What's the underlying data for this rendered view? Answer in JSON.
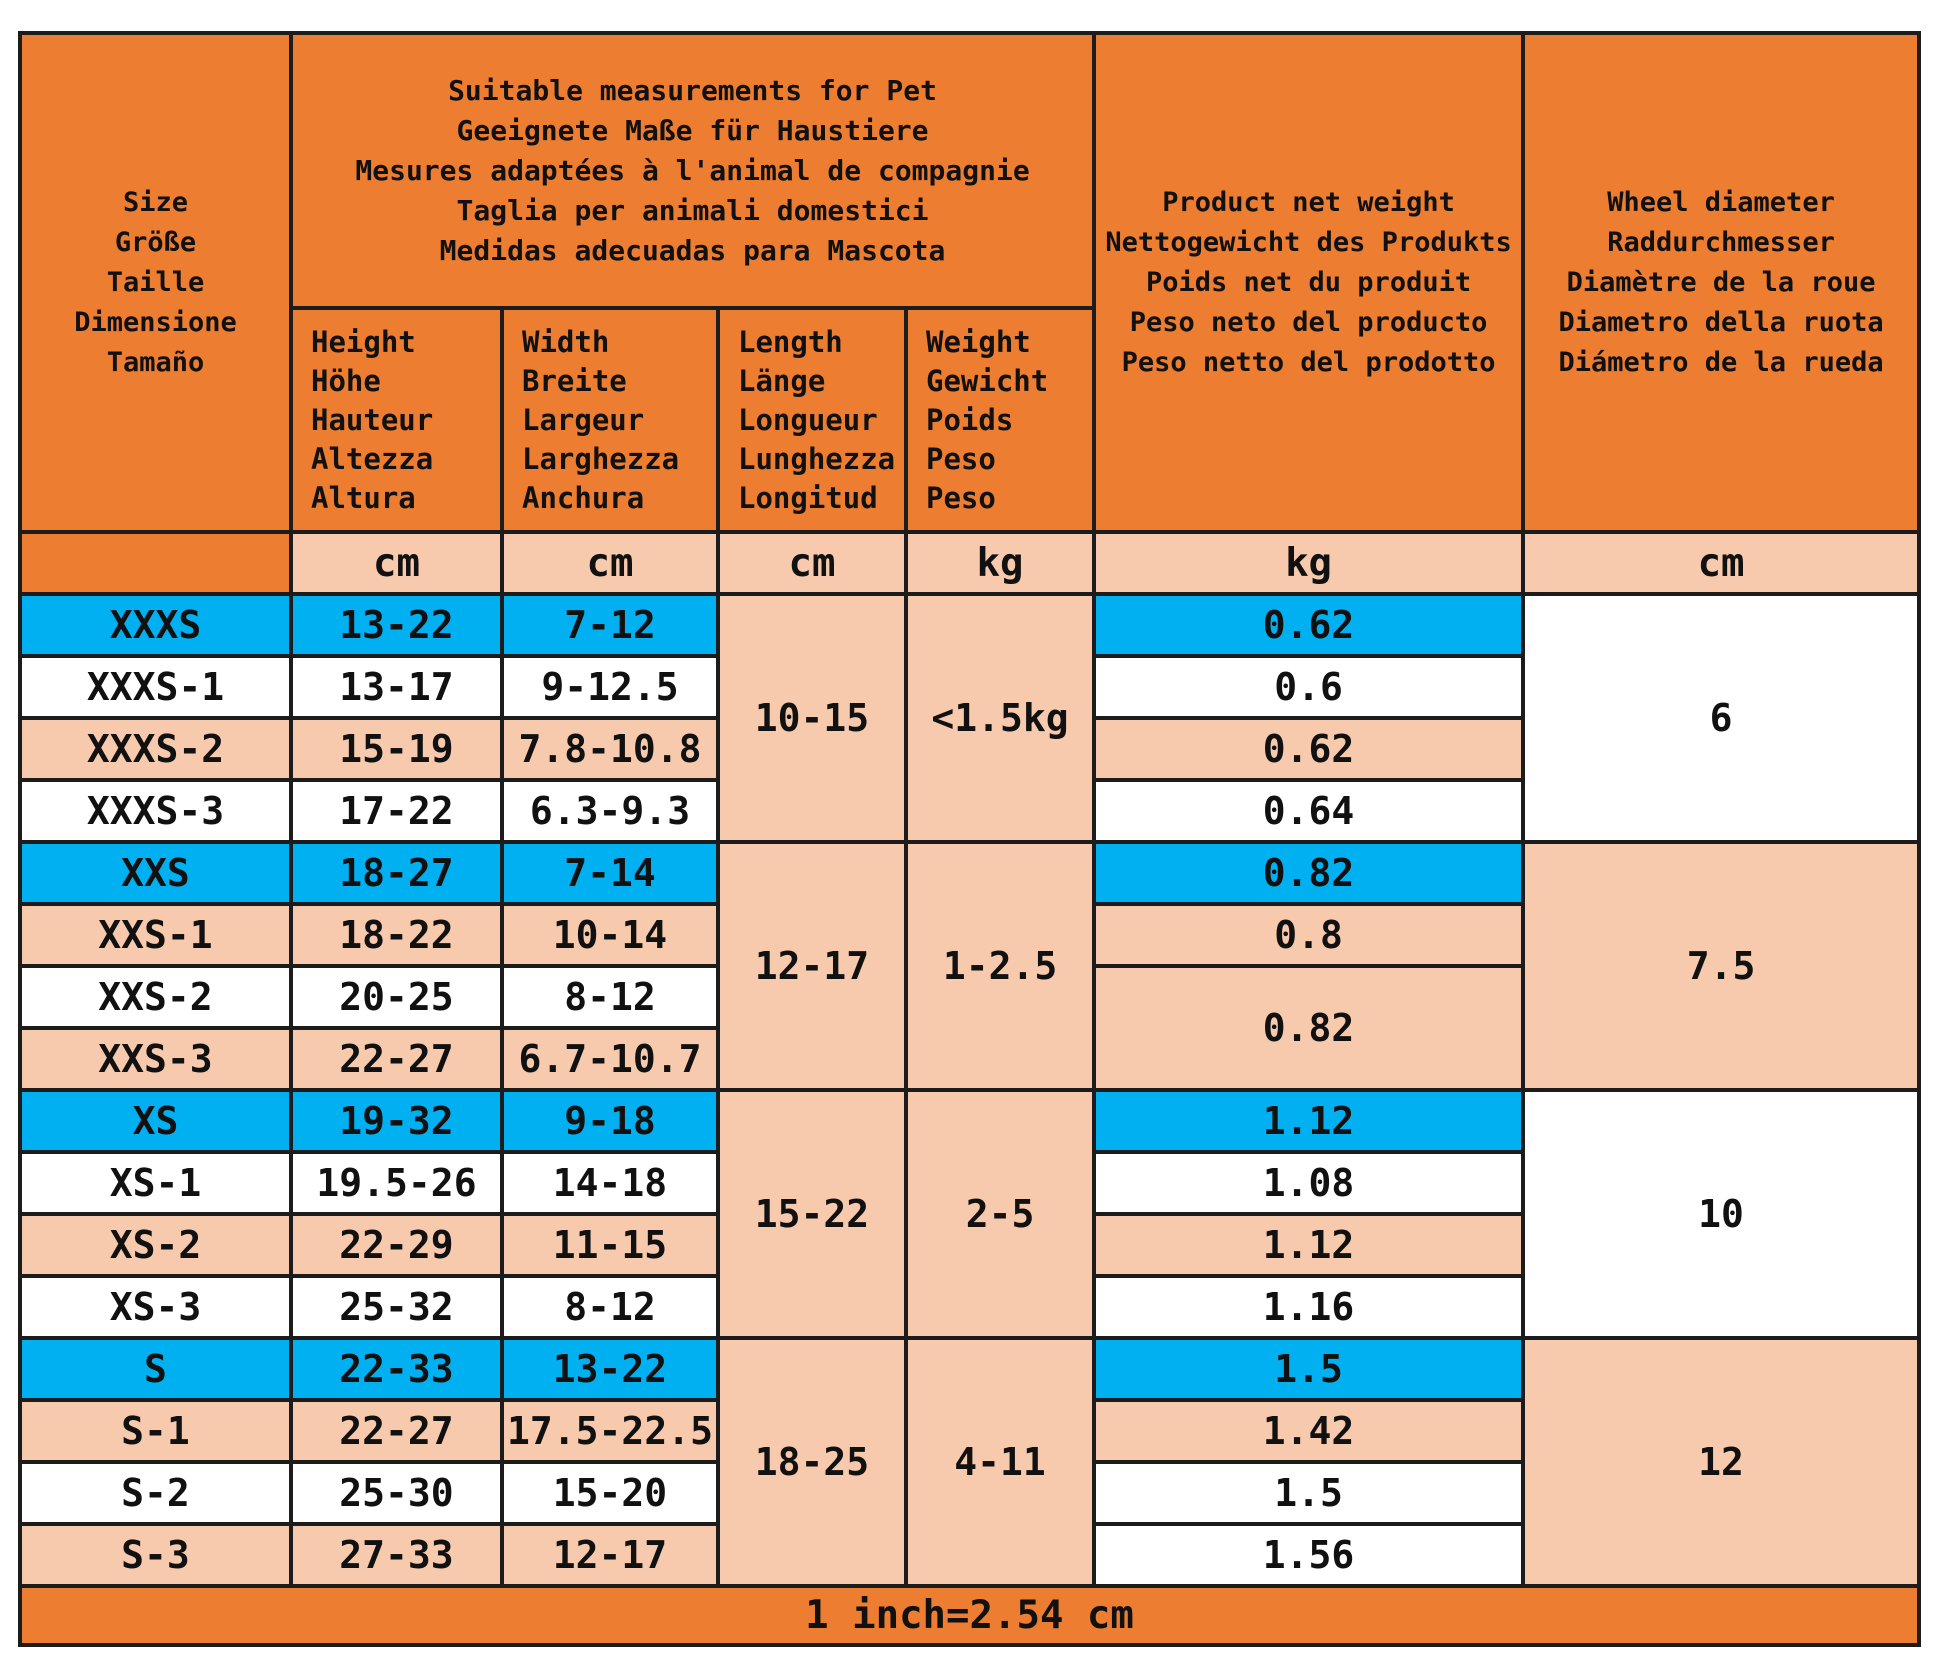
{
  "header": {
    "size": "Size\nGröße\nTaille\nDimensione\nTamaño",
    "group": "Suitable measurements for Pet\nGeeignete Maße für Haustiere\nMesures adaptées à l'animal de compagnie\nTaglia per animali domestici\nMedidas adecuadas para Mascota",
    "net_weight": "Product net weight\nNettogewicht des Produkts\nPoids net du produit\nPeso neto del producto\nPeso netto del prodotto",
    "wheel": "Wheel diameter\nRaddurchmesser\nDiamètre de la roue\nDiametro della ruota\nDiámetro de la rueda",
    "height": "Height\nHöhe\nHauteur\nAltezza\nAltura",
    "width": "Width\nBreite\nLargeur\nLarghezza\nAnchura",
    "length": "Length\nLänge\nLongueur\nLunghezza\nLongitud",
    "weight": "Weight\nGewicht\nPoids\nPeso\nPeso"
  },
  "units": [
    "cm",
    "cm",
    "cm",
    "kg",
    "kg",
    "cm"
  ],
  "groups": [
    {
      "length": "10-15",
      "weight": "<1.5kg",
      "wheel": "6",
      "rows": [
        {
          "size": "XXXS",
          "height": "13-22",
          "width": "7-12",
          "net": "0.62"
        },
        {
          "size": "XXXS-1",
          "height": "13-17",
          "width": "9-12.5",
          "net": "0.6"
        },
        {
          "size": "XXXS-2",
          "height": "15-19",
          "width": "7.8-10.8",
          "net": "0.62"
        },
        {
          "size": "XXXS-3",
          "height": "17-22",
          "width": "6.3-9.3",
          "net": "0.64"
        }
      ]
    },
    {
      "length": "12-17",
      "weight": "1-2.5",
      "wheel": "7.5",
      "rows": [
        {
          "size": "XXS",
          "height": "18-27",
          "width": "7-14",
          "net": "0.82"
        },
        {
          "size": "XXS-1",
          "height": "18-22",
          "width": "10-14",
          "net": "0.8"
        },
        {
          "size": "XXS-2",
          "height": "20-25",
          "width": "8-12",
          "net": "0.82"
        },
        {
          "size": "XXS-3",
          "height": "22-27",
          "width": "6.7-10.7",
          "net": ""
        }
      ]
    },
    {
      "length": "15-22",
      "weight": "2-5",
      "wheel": "10",
      "rows": [
        {
          "size": "XS",
          "height": "19-32",
          "width": "9-18",
          "net": "1.12"
        },
        {
          "size": "XS-1",
          "height": "19.5-26",
          "width": "14-18",
          "net": "1.08"
        },
        {
          "size": "XS-2",
          "height": "22-29",
          "width": "11-15",
          "net": "1.12"
        },
        {
          "size": "XS-3",
          "height": "25-32",
          "width": "8-12",
          "net": "1.16"
        }
      ]
    },
    {
      "length": "18-25",
      "weight": "4-11",
      "wheel": "12",
      "rows": [
        {
          "size": "S",
          "height": "22-33",
          "width": "13-22",
          "net": "1.5"
        },
        {
          "size": "S-1",
          "height": "22-27",
          "width": "17.5-22.5",
          "net": "1.42"
        },
        {
          "size": "S-2",
          "height": "25-30",
          "width": "15-20",
          "net": "1.5"
        },
        {
          "size": "S-3",
          "height": "27-33",
          "width": "12-17",
          "net": "1.56"
        }
      ]
    }
  ],
  "footer": "1 inch=2.54 cm",
  "colors": {
    "header_orange": "#ed7d31",
    "peach": "#f7c9ad",
    "highlight_blue": "#00b0f0",
    "white": "#ffffff",
    "border": "#1c1c1c"
  }
}
